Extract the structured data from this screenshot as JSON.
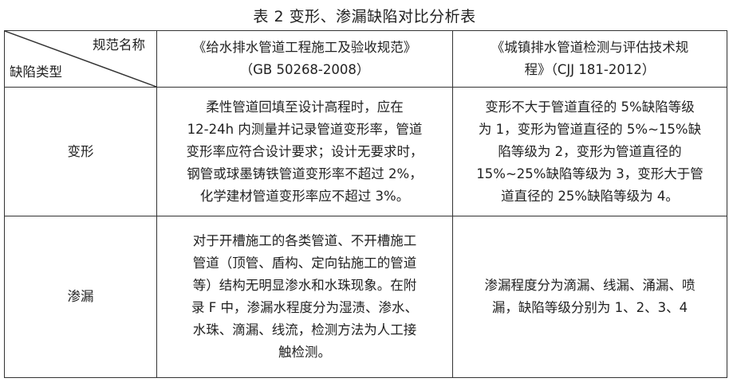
{
  "title": "表 2 变形、渗漏缺陷对比分析表",
  "header": {
    "corner_top": "规范名称",
    "corner_bottom": "缺陷类型",
    "col1_lines": [
      "《给水排水管道工程施工及验收规范》",
      "（GB 50268-2008）"
    ],
    "col2_lines": [
      "《城镇排水管道检测与评估技术规",
      "程》（CJJ 181-2012）"
    ]
  },
  "rows": [
    {
      "type": "变形",
      "col1_lines": [
        "柔性管道回填至设计高程时，应在",
        "12-24h 内测量并记录管道变形率，管道",
        "变形率应符合设计要求；设计无要求时，",
        "钢管或球墨铸铁管道变形率不超过 2%，",
        "化学建材管道变形率应不超过 3%。"
      ],
      "col2_lines": [
        "变形不大于管道直径的 5%缺陷等级",
        "为 1，变形为管道直径的 5%~15%缺",
        "陷等级为 2，变形为管道直径的",
        "15%~25%缺陷等级为 3，变形大于管",
        "道直径的 25%缺陷等级为 4。"
      ]
    },
    {
      "type": "渗漏",
      "col1_lines": [
        "对于开槽施工的各类管道、不开槽施工",
        "管道（顶管、盾构、定向钻施工的管道",
        "等）结构无明显渗水和水珠现象。在附",
        "录 F 中，渗漏水程度分为湿渍、渗水、",
        "水珠、滴漏、线流，检测方法为人工接",
        "触检测。"
      ],
      "col2_lines": [
        "渗漏程度分为滴漏、线漏、涌漏、喷",
        "漏，缺陷等级分别为 1、2、3、4"
      ]
    }
  ]
}
